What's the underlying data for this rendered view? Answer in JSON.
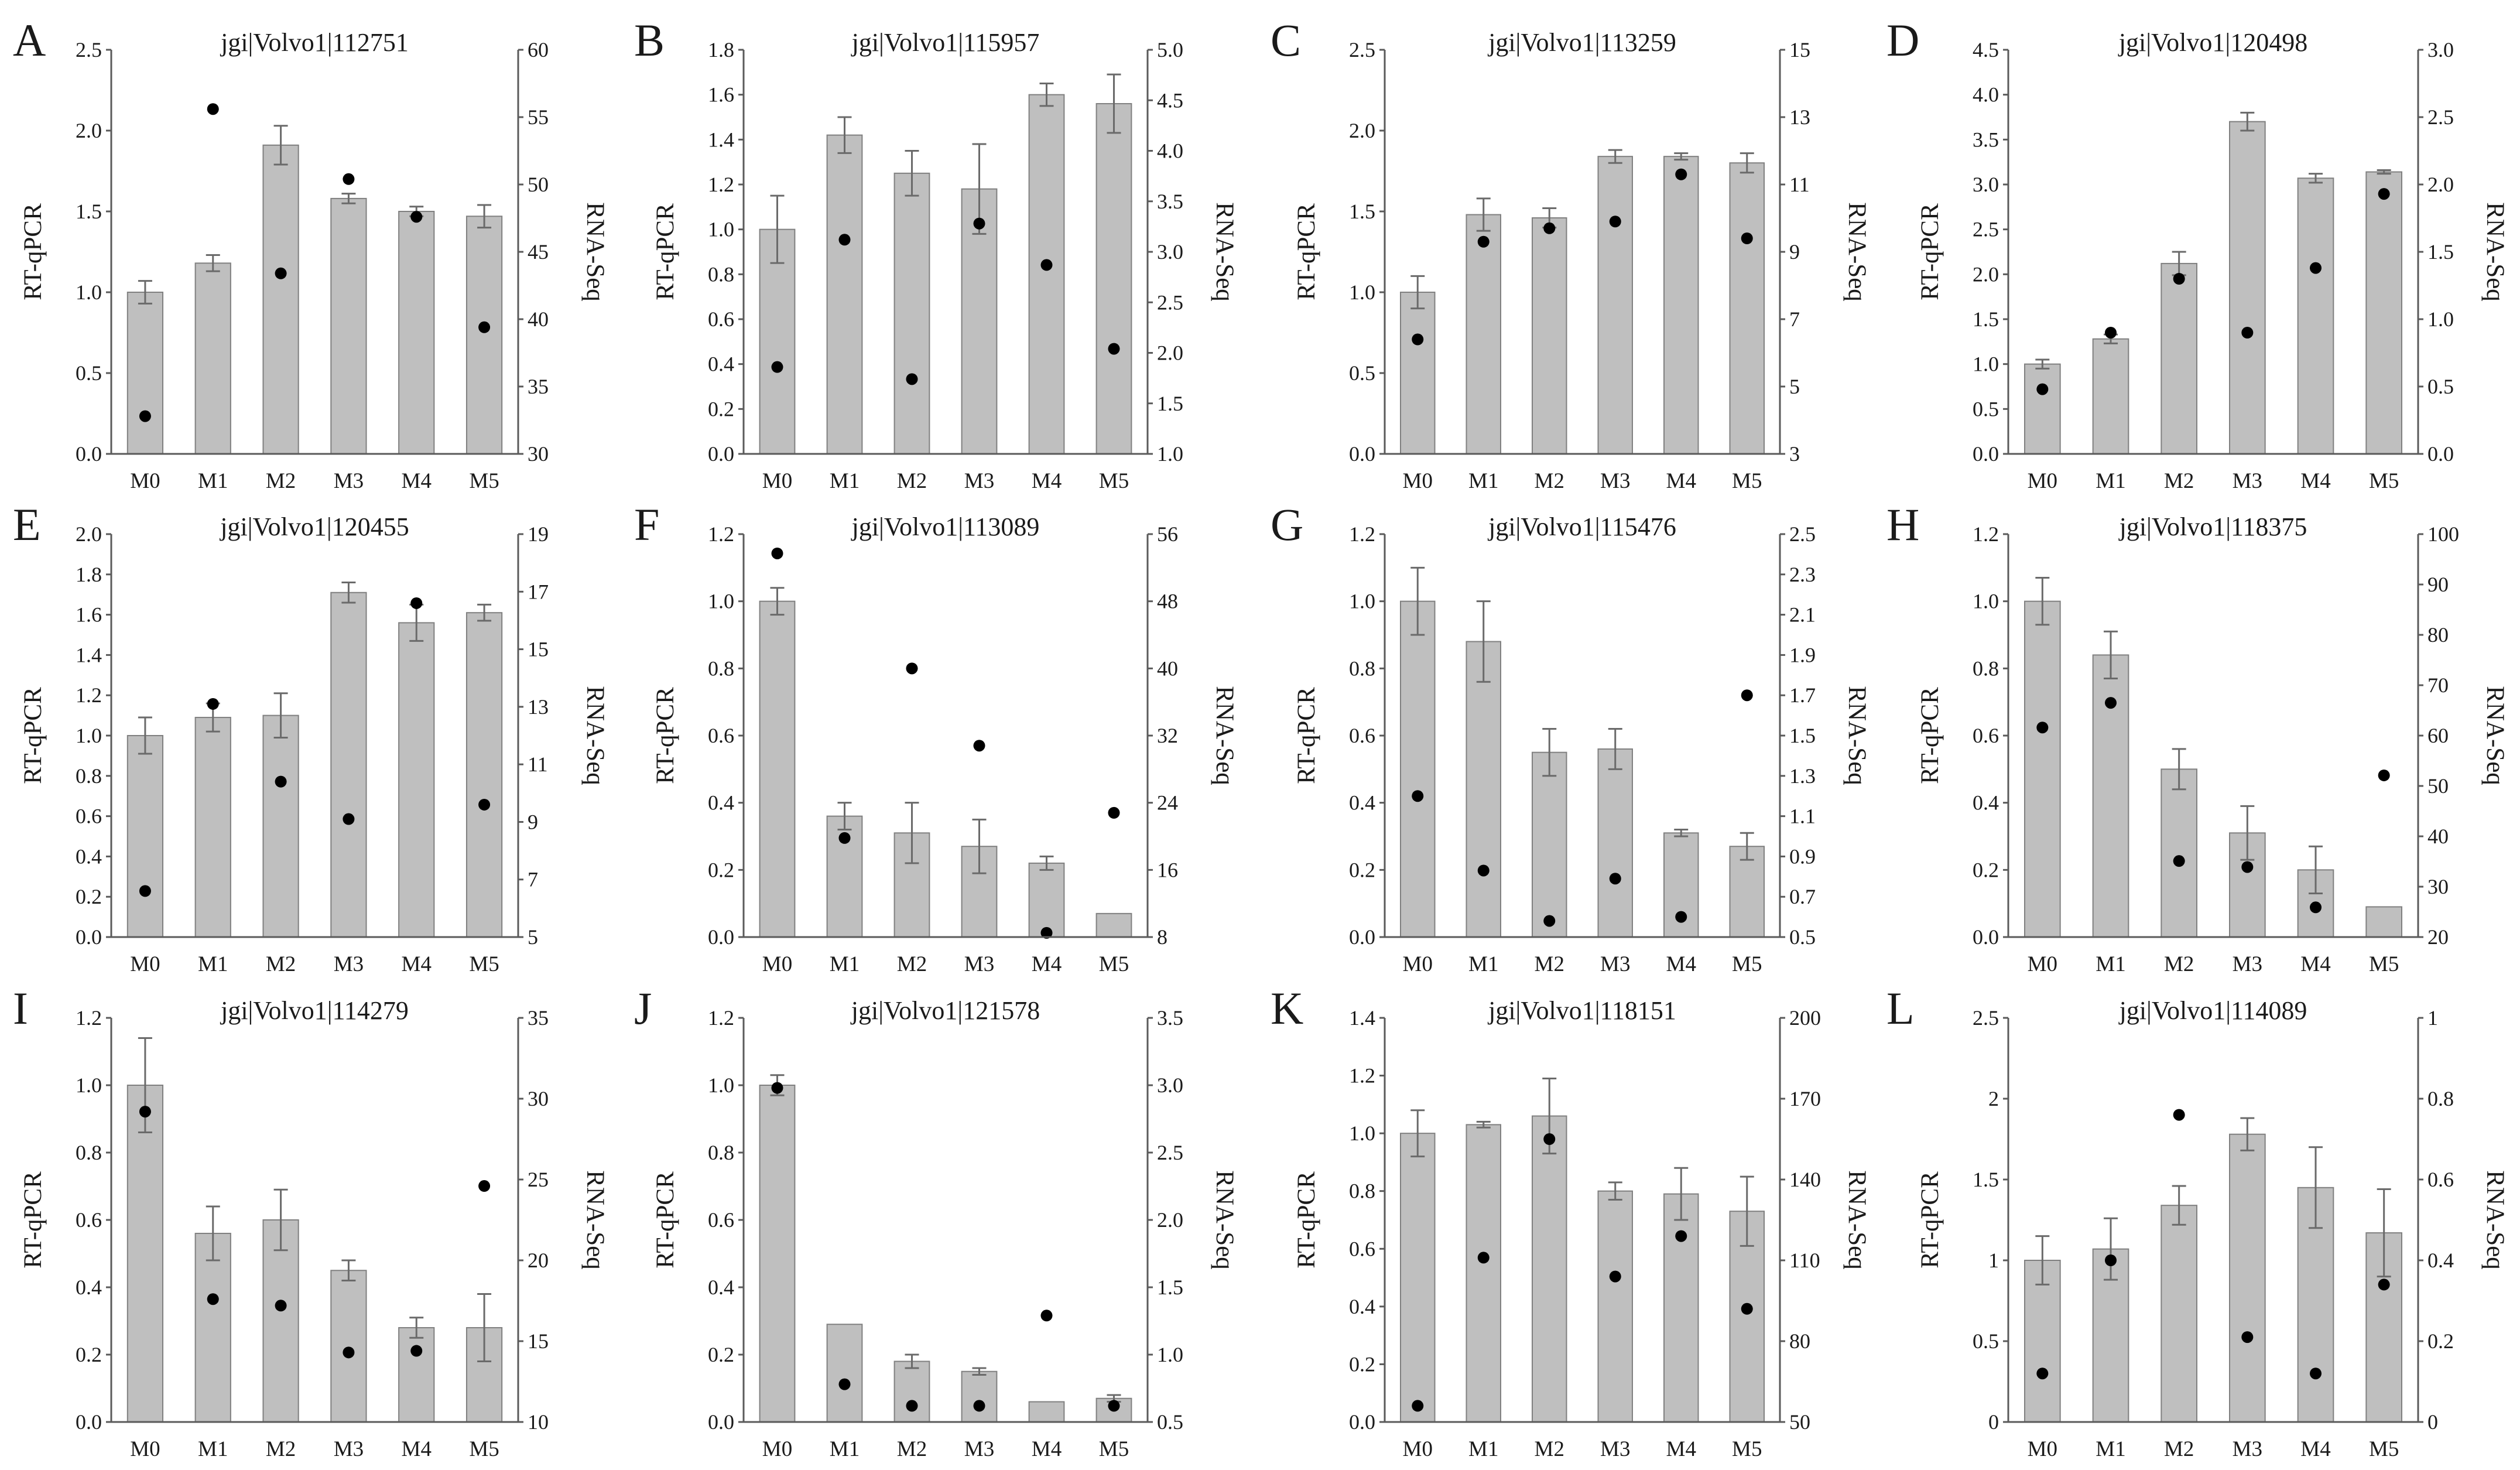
{
  "colors": {
    "bar": "#bfbfbf",
    "bar_edge": "#808080",
    "axis": "#5a5a5a",
    "point": "#000000",
    "error_bar": "#6a6a6a"
  },
  "chart_data": [
    {
      "panel": "A",
      "title": "jgi|Volvo1|112751",
      "type": "bar",
      "categories": [
        "M0",
        "M1",
        "M2",
        "M3",
        "M4",
        "M5"
      ],
      "ylabel": "RT-qPCR",
      "y2label": "RNA-Seq",
      "ylim": [
        0,
        2.5
      ],
      "y2lim": [
        30,
        60
      ],
      "y_ticks": [
        "0.0",
        "0.5",
        "1.0",
        "1.5",
        "2.0",
        "2.5"
      ],
      "y2_ticks": [
        "30",
        "35",
        "40",
        "45",
        "50",
        "55",
        "60"
      ],
      "series": [
        {
          "name": "",
          "kind": "bar",
          "axis": "left",
          "values": [
            1.0,
            1.18,
            1.91,
            1.58,
            1.5,
            1.47
          ],
          "errors": [
            0.07,
            0.05,
            0.12,
            0.03,
            0.03,
            0.07
          ]
        },
        {
          "name": "",
          "kind": "scatter",
          "axis": "right",
          "values": [
            32.8,
            55.6,
            43.4,
            50.4,
            47.6,
            39.4
          ]
        }
      ]
    },
    {
      "panel": "B",
      "title": "jgi|Volvo1|115957",
      "type": "bar",
      "categories": [
        "M0",
        "M1",
        "M2",
        "M3",
        "M4",
        "M5"
      ],
      "ylabel": "RT-qPCR",
      "y2label": "RNA-Seq",
      "ylim": [
        0,
        1.8
      ],
      "y2lim": [
        1.0,
        5.0
      ],
      "y_ticks": [
        "0.0",
        "0.2",
        "0.4",
        "0.6",
        "0.8",
        "1.0",
        "1.2",
        "1.4",
        "1.6",
        "1.8"
      ],
      "y2_ticks": [
        "1.0",
        "1.5",
        "2.0",
        "2.5",
        "3.0",
        "3.5",
        "4.0",
        "4.5",
        "5.0"
      ],
      "series": [
        {
          "name": "",
          "kind": "bar",
          "axis": "left",
          "values": [
            1.0,
            1.42,
            1.25,
            1.18,
            1.6,
            1.56
          ],
          "errors": [
            0.15,
            0.08,
            0.1,
            0.2,
            0.05,
            0.13
          ]
        },
        {
          "name": "",
          "kind": "scatter",
          "axis": "right",
          "values": [
            1.86,
            3.12,
            1.74,
            3.28,
            2.87,
            2.04
          ]
        }
      ]
    },
    {
      "panel": "C",
      "title": "jgi|Volvo1|113259",
      "type": "bar",
      "categories": [
        "M0",
        "M1",
        "M2",
        "M3",
        "M4",
        "M5"
      ],
      "ylabel": "RT-qPCR",
      "y2label": "RNA-Seq",
      "ylim": [
        0,
        2.5
      ],
      "y2lim": [
        3,
        15
      ],
      "y_ticks": [
        "0.0",
        "0.5",
        "1.0",
        "1.5",
        "2.0",
        "2.5"
      ],
      "y2_ticks": [
        "3",
        "5",
        "7",
        "9",
        "11",
        "13",
        "15"
      ],
      "series": [
        {
          "name": "",
          "kind": "bar",
          "axis": "left",
          "values": [
            1.0,
            1.48,
            1.46,
            1.84,
            1.84,
            1.8
          ],
          "errors": [
            0.1,
            0.1,
            0.06,
            0.04,
            0.02,
            0.06
          ]
        },
        {
          "name": "",
          "kind": "scatter",
          "axis": "right",
          "values": [
            6.4,
            9.3,
            9.7,
            9.9,
            11.3,
            9.4
          ]
        }
      ]
    },
    {
      "panel": "D",
      "title": "jgi|Volvo1|120498",
      "type": "bar",
      "categories": [
        "M0",
        "M1",
        "M2",
        "M3",
        "M4",
        "M5"
      ],
      "ylabel": "RT-qPCR",
      "y2label": "RNA-Seq",
      "ylim": [
        0,
        4.5
      ],
      "y2lim": [
        0,
        3.0
      ],
      "y_ticks": [
        "0.0",
        "0.5",
        "1.0",
        "1.5",
        "2.0",
        "2.5",
        "3.0",
        "3.5",
        "4.0",
        "4.5"
      ],
      "y2_ticks": [
        "0.0",
        "0.5",
        "1.0",
        "1.5",
        "2.0",
        "2.5",
        "3.0"
      ],
      "series": [
        {
          "name": "",
          "kind": "bar",
          "axis": "left",
          "values": [
            1.0,
            1.28,
            2.12,
            3.7,
            3.07,
            3.14
          ],
          "errors": [
            0.05,
            0.05,
            0.13,
            0.1,
            0.05,
            0.02
          ]
        },
        {
          "name": "",
          "kind": "scatter",
          "axis": "right",
          "values": [
            0.48,
            0.9,
            1.3,
            0.9,
            1.38,
            1.93
          ]
        }
      ]
    },
    {
      "panel": "E",
      "title": "jgi|Volvo1|120455",
      "type": "bar",
      "categories": [
        "M0",
        "M1",
        "M2",
        "M3",
        "M4",
        "M5"
      ],
      "ylabel": "RT-qPCR",
      "y2label": "RNA-Seq",
      "ylim": [
        0,
        2.0
      ],
      "y2lim": [
        5,
        19
      ],
      "y_ticks": [
        "0.0",
        "0.2",
        "0.4",
        "0.6",
        "0.8",
        "1.0",
        "1.2",
        "1.4",
        "1.6",
        "1.8",
        "2.0"
      ],
      "y2_ticks": [
        "5",
        "7",
        "9",
        "11",
        "13",
        "15",
        "17",
        "19"
      ],
      "series": [
        {
          "name": "",
          "kind": "bar",
          "axis": "left",
          "values": [
            1.0,
            1.09,
            1.1,
            1.71,
            1.56,
            1.61
          ],
          "errors": [
            0.09,
            0.07,
            0.11,
            0.05,
            0.09,
            0.04
          ]
        },
        {
          "name": "",
          "kind": "scatter",
          "axis": "right",
          "values": [
            6.6,
            13.1,
            10.4,
            9.1,
            16.6,
            9.6
          ]
        }
      ]
    },
    {
      "panel": "F",
      "title": "jgi|Volvo1|113089",
      "type": "bar",
      "categories": [
        "M0",
        "M1",
        "M2",
        "M3",
        "M4",
        "M5"
      ],
      "ylabel": "RT-qPCR",
      "y2label": "RNA-Seq",
      "ylim": [
        0,
        1.2
      ],
      "y2lim": [
        8,
        56
      ],
      "y_ticks": [
        "0.0",
        "0.2",
        "0.4",
        "0.6",
        "0.8",
        "1.0",
        "1.2"
      ],
      "y2_ticks": [
        "8",
        "16",
        "24",
        "32",
        "40",
        "48",
        "56"
      ],
      "series": [
        {
          "name": "",
          "kind": "bar",
          "axis": "left",
          "values": [
            1.0,
            0.36,
            0.31,
            0.27,
            0.22,
            0.07
          ],
          "errors": [
            0.04,
            0.04,
            0.09,
            0.08,
            0.02,
            0.0
          ]
        },
        {
          "name": "",
          "kind": "scatter",
          "axis": "right",
          "values": [
            53.7,
            19.8,
            40.0,
            30.8,
            8.5,
            22.8
          ]
        }
      ]
    },
    {
      "panel": "G",
      "title": "jgi|Volvo1|115476",
      "type": "bar",
      "categories": [
        "M0",
        "M1",
        "M2",
        "M3",
        "M4",
        "M5"
      ],
      "ylabel": "RT-qPCR",
      "y2label": "RNA-Seq",
      "ylim": [
        0,
        1.2
      ],
      "y2lim": [
        0.5,
        2.5
      ],
      "y_ticks": [
        "0.0",
        "0.2",
        "0.4",
        "0.6",
        "0.8",
        "1.0",
        "1.2"
      ],
      "y2_ticks": [
        "0.5",
        "0.7",
        "0.9",
        "1.1",
        "1.3",
        "1.5",
        "1.7",
        "1.9",
        "2.1",
        "2.3",
        "2.5"
      ],
      "series": [
        {
          "name": "",
          "kind": "bar",
          "axis": "left",
          "values": [
            1.0,
            0.88,
            0.55,
            0.56,
            0.31,
            0.27
          ],
          "errors": [
            0.1,
            0.12,
            0.07,
            0.06,
            0.01,
            0.04
          ]
        },
        {
          "name": "",
          "kind": "scatter",
          "axis": "right",
          "values": [
            1.2,
            0.83,
            0.58,
            0.79,
            0.6,
            1.7
          ]
        }
      ]
    },
    {
      "panel": "H",
      "title": "jgi|Volvo1|118375",
      "type": "bar",
      "categories": [
        "M0",
        "M1",
        "M2",
        "M3",
        "M4",
        "M5"
      ],
      "ylabel": "RT-qPCR",
      "y2label": "RNA-Seq",
      "ylim": [
        0,
        1.2
      ],
      "y2lim": [
        20,
        100
      ],
      "y_ticks": [
        "0.0",
        "0.2",
        "0.4",
        "0.6",
        "0.8",
        "1.0",
        "1.2"
      ],
      "y2_ticks": [
        "20",
        "30",
        "40",
        "50",
        "60",
        "70",
        "80",
        "90",
        "100"
      ],
      "series": [
        {
          "name": "",
          "kind": "bar",
          "axis": "left",
          "values": [
            1.0,
            0.84,
            0.5,
            0.31,
            0.2,
            0.09
          ],
          "errors": [
            0.07,
            0.07,
            0.06,
            0.08,
            0.07,
            0.0
          ]
        },
        {
          "name": "",
          "kind": "scatter",
          "axis": "right",
          "values": [
            61.6,
            66.5,
            35.1,
            33.9,
            25.9,
            52.1
          ]
        }
      ]
    },
    {
      "panel": "I",
      "title": "jgi|Volvo1|114279",
      "type": "bar",
      "categories": [
        "M0",
        "M1",
        "M2",
        "M3",
        "M4",
        "M5"
      ],
      "ylabel": "RT-qPCR",
      "y2label": "RNA-Seq",
      "ylim": [
        0,
        1.2
      ],
      "y2lim": [
        10,
        35
      ],
      "y_ticks": [
        "0.0",
        "0.2",
        "0.4",
        "0.6",
        "0.8",
        "1.0",
        "1.2"
      ],
      "y2_ticks": [
        "10",
        "15",
        "20",
        "25",
        "30",
        "35"
      ],
      "series": [
        {
          "name": "",
          "kind": "bar",
          "axis": "left",
          "values": [
            1.0,
            0.56,
            0.6,
            0.45,
            0.28,
            0.28
          ],
          "errors": [
            0.14,
            0.08,
            0.09,
            0.03,
            0.03,
            0.1
          ]
        },
        {
          "name": "",
          "kind": "scatter",
          "axis": "right",
          "values": [
            29.2,
            17.6,
            17.2,
            14.3,
            14.4,
            24.6
          ]
        }
      ]
    },
    {
      "panel": "J",
      "title": "jgi|Volvo1|121578",
      "type": "bar",
      "categories": [
        "M0",
        "M1",
        "M2",
        "M3",
        "M4",
        "M5"
      ],
      "ylabel": "RT-qPCR",
      "y2label": "RNA-Seq",
      "ylim": [
        0,
        1.2
      ],
      "y2lim": [
        0.5,
        3.5
      ],
      "y_ticks": [
        "0.0",
        "0.2",
        "0.4",
        "0.6",
        "0.8",
        "1.0",
        "1.2"
      ],
      "y2_ticks": [
        "0.5",
        "1.0",
        "1.5",
        "2.0",
        "2.5",
        "3.0",
        "3.5"
      ],
      "series": [
        {
          "name": "",
          "kind": "bar",
          "axis": "left",
          "values": [
            1.0,
            0.29,
            0.18,
            0.15,
            0.06,
            0.07
          ],
          "errors": [
            0.03,
            0.0,
            0.02,
            0.01,
            0.0,
            0.01
          ]
        },
        {
          "name": "",
          "kind": "scatter",
          "axis": "right",
          "values": [
            2.98,
            0.78,
            0.62,
            0.62,
            1.29,
            0.62
          ]
        }
      ]
    },
    {
      "panel": "K",
      "title": "jgi|Volvo1|118151",
      "type": "bar",
      "categories": [
        "M0",
        "M1",
        "M2",
        "M3",
        "M4",
        "M5"
      ],
      "ylabel": "RT-qPCR",
      "y2label": "RNA-Seq",
      "ylim": [
        0,
        1.4
      ],
      "y2lim": [
        50,
        200
      ],
      "y_ticks": [
        "0.0",
        "0.2",
        "0.4",
        "0.6",
        "0.8",
        "1.0",
        "1.2",
        "1.4"
      ],
      "y2_ticks": [
        "50",
        "80",
        "110",
        "140",
        "170",
        "200"
      ],
      "series": [
        {
          "name": "",
          "kind": "bar",
          "axis": "left",
          "values": [
            1.0,
            1.03,
            1.06,
            0.8,
            0.79,
            0.73
          ],
          "errors": [
            0.08,
            0.01,
            0.13,
            0.03,
            0.09,
            0.12
          ]
        },
        {
          "name": "",
          "kind": "scatter",
          "axis": "right",
          "values": [
            56.0,
            111.0,
            155.0,
            104.0,
            119.0,
            92.0
          ]
        }
      ]
    },
    {
      "panel": "L",
      "title": "jgi|Volvo1|114089",
      "type": "bar",
      "categories": [
        "M0",
        "M1",
        "M2",
        "M3",
        "M4",
        "M5"
      ],
      "ylabel": "RT-qPCR",
      "y2label": "RNA-Seq",
      "ylim": [
        0,
        2.5
      ],
      "y2lim": [
        0,
        1
      ],
      "y_ticks": [
        "0",
        "0.5",
        "1",
        "1.5",
        "2",
        "2.5"
      ],
      "y2_ticks": [
        "0",
        "0.2",
        "0.4",
        "0.6",
        "0.8",
        "1"
      ],
      "series": [
        {
          "name": "",
          "kind": "bar",
          "axis": "left",
          "values": [
            1.0,
            1.07,
            1.34,
            1.78,
            1.45,
            1.17
          ],
          "errors": [
            0.15,
            0.19,
            0.12,
            0.1,
            0.25,
            0.27
          ]
        },
        {
          "name": "",
          "kind": "scatter",
          "axis": "right",
          "values": [
            0.12,
            0.4,
            0.76,
            0.21,
            0.12,
            0.34
          ]
        }
      ]
    }
  ]
}
